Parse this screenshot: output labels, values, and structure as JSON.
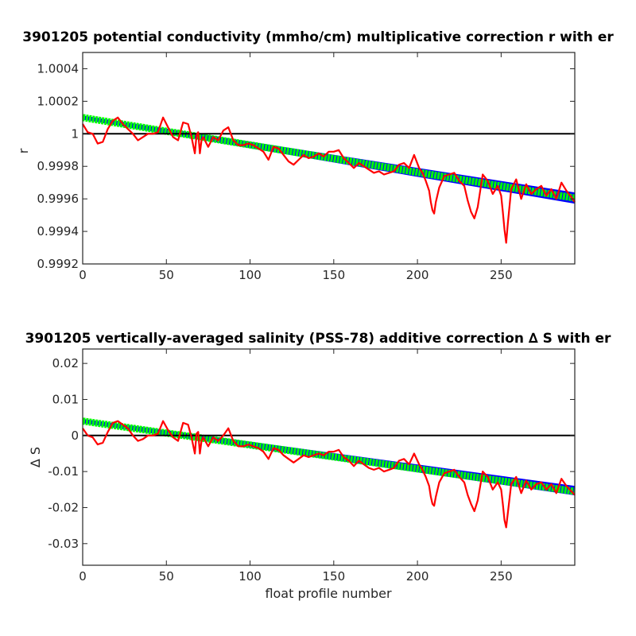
{
  "chart_data": [
    {
      "type": "line",
      "title": "3901205 potential conductivity (mmho/cm) multiplicative correction r with er",
      "xlabel": "",
      "ylabel": "r",
      "xlim": [
        0,
        294
      ],
      "ylim": [
        0.9992,
        1.0005
      ],
      "x_ticks": [
        0,
        50,
        100,
        150,
        200,
        250
      ],
      "x_tick_labels": [
        "0",
        "50",
        "100",
        "150",
        "200",
        "250"
      ],
      "y_ticks": [
        0.9992,
        0.9994,
        0.9996,
        0.9998,
        1.0,
        1.0002,
        1.0004
      ],
      "y_tick_labels": [
        "0.9992",
        "0.9994",
        "0.9996",
        "0.9998",
        "1",
        "1.0002",
        "1.0004"
      ],
      "grid": false,
      "colors": {
        "reference": "#000000",
        "error_band": "#0000ff",
        "fit": "#00ff00",
        "measured": "#ff0000"
      },
      "series": [
        {
          "role": "reference",
          "x": [
            0,
            294
          ],
          "y": [
            1.0,
            1.0
          ]
        },
        {
          "role": "error_band_upper",
          "x": [
            0,
            294
          ],
          "y": [
            1.00011,
            0.999637
          ]
        },
        {
          "role": "error_band_lower",
          "x": [
            0,
            294
          ],
          "y": [
            1.00009,
            0.999573
          ]
        },
        {
          "role": "fit",
          "x": [
            0,
            294
          ],
          "y": [
            1.0001,
            0.999605
          ]
        },
        {
          "role": "measured",
          "x": [
            0,
            3,
            6,
            9,
            12,
            15,
            18,
            21,
            24,
            27,
            30,
            33,
            36,
            39,
            42,
            45,
            48,
            51,
            54,
            57,
            60,
            63,
            65,
            67,
            68,
            69,
            70,
            71,
            72,
            75,
            78,
            81,
            84,
            87,
            90,
            93,
            96,
            99,
            102,
            105,
            108,
            111,
            114,
            117,
            120,
            123,
            126,
            129,
            132,
            135,
            138,
            141,
            144,
            147,
            150,
            153,
            156,
            159,
            162,
            165,
            168,
            171,
            174,
            177,
            180,
            183,
            186,
            189,
            192,
            195,
            198,
            201,
            203,
            205,
            207,
            208,
            209,
            210,
            211,
            213,
            216,
            219,
            222,
            225,
            228,
            230,
            232,
            234,
            236,
            239,
            242,
            245,
            248,
            250,
            251,
            252,
            253,
            254,
            256,
            259,
            262,
            265,
            268,
            271,
            274,
            277,
            280,
            283,
            286,
            289,
            292,
            294
          ],
          "y": [
            1.00006,
            1.00001,
            1.0,
            0.99994,
            0.99995,
            1.00003,
            1.00008,
            1.0001,
            1.00006,
            1.00003,
            1.0,
            0.99996,
            0.99998,
            1.0,
            1.0,
            1.00001,
            1.0001,
            1.00004,
            0.99998,
            0.99996,
            1.00007,
            1.00006,
            0.99998,
            0.99988,
            0.99999,
            1.00001,
            0.99988,
            0.99996,
            0.99998,
            0.99992,
            0.99998,
            0.99996,
            1.00002,
            1.00004,
            0.99996,
            0.99993,
            0.99993,
            0.99994,
            0.99993,
            0.99991,
            0.99989,
            0.99984,
            0.99992,
            0.99991,
            0.99987,
            0.99983,
            0.99981,
            0.99984,
            0.99987,
            0.99985,
            0.99986,
            0.99988,
            0.99986,
            0.99989,
            0.99989,
            0.9999,
            0.99985,
            0.99982,
            0.99979,
            0.99982,
            0.9998,
            0.99978,
            0.99976,
            0.99977,
            0.99975,
            0.99976,
            0.99977,
            0.99981,
            0.99982,
            0.99979,
            0.99987,
            0.99979,
            0.99976,
            0.99971,
            0.99965,
            0.99958,
            0.99953,
            0.99951,
            0.99958,
            0.99967,
            0.99974,
            0.99975,
            0.99976,
            0.99971,
            0.99968,
            0.99959,
            0.99952,
            0.99948,
            0.99955,
            0.99975,
            0.99971,
            0.99963,
            0.99968,
            0.99962,
            0.99952,
            0.99941,
            0.99933,
            0.99945,
            0.99966,
            0.99972,
            0.9996,
            0.99969,
            0.99963,
            0.99966,
            0.99968,
            0.99962,
            0.99966,
            0.9996,
            0.9997,
            0.99965,
            0.99961,
            0.99958
          ]
        }
      ]
    },
    {
      "type": "line",
      "title": "3901205 vertically-averaged salinity (PSS-78) additive correction ∆ S with er",
      "xlabel": "float profile number",
      "ylabel": "∆ S",
      "xlim": [
        0,
        294
      ],
      "ylim": [
        -0.036,
        0.024
      ],
      "x_ticks": [
        0,
        50,
        100,
        150,
        200,
        250
      ],
      "x_tick_labels": [
        "0",
        "50",
        "100",
        "150",
        "200",
        "250"
      ],
      "y_ticks": [
        -0.03,
        -0.02,
        -0.01,
        0,
        0.01,
        0.02
      ],
      "y_tick_labels": [
        "-0.03",
        "-0.02",
        "-0.01",
        "0",
        "0.01",
        "0.02"
      ],
      "grid": false,
      "colors": {
        "reference": "#000000",
        "error_band": "#0000ff",
        "fit": "#00ff00",
        "measured": "#ff0000"
      },
      "series": [
        {
          "role": "reference",
          "x": [
            0,
            294
          ],
          "y": [
            0,
            0
          ]
        },
        {
          "role": "error_band_upper",
          "x": [
            0,
            294
          ],
          "y": [
            0.0045,
            -0.0141
          ]
        },
        {
          "role": "error_band_lower",
          "x": [
            0,
            294
          ],
          "y": [
            0.0035,
            -0.0165
          ]
        },
        {
          "role": "fit",
          "x": [
            0,
            294
          ],
          "y": [
            0.004,
            -0.0155
          ]
        },
        {
          "role": "measured",
          "x": [
            0,
            3,
            6,
            9,
            12,
            15,
            18,
            21,
            24,
            27,
            30,
            33,
            36,
            39,
            42,
            45,
            48,
            51,
            54,
            57,
            60,
            63,
            65,
            67,
            68,
            69,
            70,
            71,
            72,
            75,
            78,
            81,
            84,
            87,
            90,
            93,
            96,
            99,
            102,
            105,
            108,
            111,
            114,
            117,
            120,
            123,
            126,
            129,
            132,
            135,
            138,
            141,
            144,
            147,
            150,
            153,
            156,
            159,
            162,
            165,
            168,
            171,
            174,
            177,
            180,
            183,
            186,
            189,
            192,
            195,
            198,
            201,
            203,
            205,
            207,
            208,
            209,
            210,
            211,
            213,
            216,
            219,
            222,
            225,
            228,
            230,
            232,
            234,
            236,
            239,
            242,
            245,
            248,
            250,
            251,
            252,
            253,
            254,
            256,
            259,
            262,
            265,
            268,
            271,
            274,
            277,
            280,
            283,
            286,
            289,
            292,
            294
          ],
          "y": [
            0.002,
            0.0,
            -0.0005,
            -0.0025,
            -0.002,
            0.001,
            0.0035,
            0.004,
            0.003,
            0.002,
            0.0,
            -0.0015,
            -0.001,
            0.0,
            0.0,
            0.0005,
            0.004,
            0.0015,
            -0.0005,
            -0.0015,
            0.0035,
            0.003,
            -0.0005,
            -0.005,
            0.0005,
            0.001,
            -0.005,
            -0.0015,
            -0.0005,
            -0.003,
            -0.0005,
            -0.0015,
            0.0,
            0.002,
            -0.0015,
            -0.003,
            -0.003,
            -0.0025,
            -0.003,
            -0.0035,
            -0.0045,
            -0.0065,
            -0.0035,
            -0.004,
            -0.0055,
            -0.0065,
            -0.0075,
            -0.0065,
            -0.0055,
            -0.006,
            -0.0055,
            -0.005,
            -0.0055,
            -0.0045,
            -0.0045,
            -0.004,
            -0.006,
            -0.007,
            -0.0085,
            -0.007,
            -0.008,
            -0.009,
            -0.0095,
            -0.009,
            -0.01,
            -0.0095,
            -0.009,
            -0.007,
            -0.0065,
            -0.008,
            -0.005,
            -0.008,
            -0.0095,
            -0.0115,
            -0.014,
            -0.017,
            -0.019,
            -0.0195,
            -0.017,
            -0.013,
            -0.0105,
            -0.01,
            -0.0095,
            -0.0115,
            -0.013,
            -0.0165,
            -0.019,
            -0.021,
            -0.018,
            -0.01,
            -0.0115,
            -0.015,
            -0.013,
            -0.015,
            -0.019,
            -0.0235,
            -0.0255,
            -0.0215,
            -0.0135,
            -0.0115,
            -0.016,
            -0.0125,
            -0.015,
            -0.0135,
            -0.013,
            -0.015,
            -0.0135,
            -0.016,
            -0.012,
            -0.014,
            -0.0155,
            -0.0165
          ]
        }
      ]
    }
  ]
}
